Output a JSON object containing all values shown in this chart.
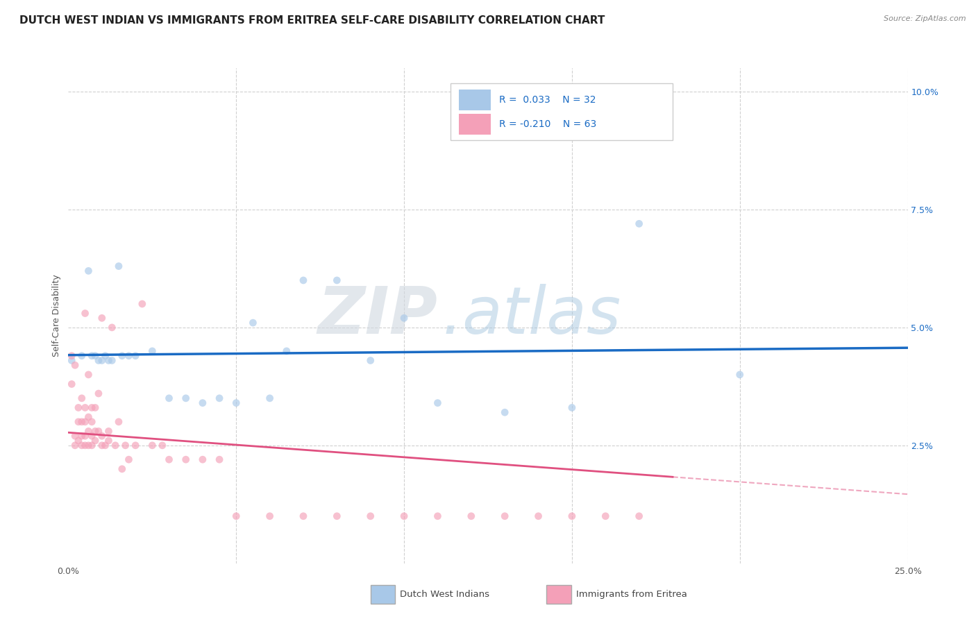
{
  "title": "DUTCH WEST INDIAN VS IMMIGRANTS FROM ERITREA SELF-CARE DISABILITY CORRELATION CHART",
  "source": "Source: ZipAtlas.com",
  "ylabel": "Self-Care Disability",
  "xlim": [
    0.0,
    0.25
  ],
  "ylim": [
    0.0,
    0.105
  ],
  "blue_color": "#a8c8e8",
  "blue_line_color": "#1a6bc4",
  "pink_color": "#f4a0b8",
  "pink_line_color": "#e05080",
  "R_blue": 0.033,
  "N_blue": 32,
  "R_pink": -0.21,
  "N_pink": 63,
  "blue_x": [
    0.001,
    0.004,
    0.006,
    0.007,
    0.008,
    0.009,
    0.01,
    0.011,
    0.012,
    0.013,
    0.015,
    0.016,
    0.018,
    0.02,
    0.025,
    0.03,
    0.035,
    0.04,
    0.045,
    0.05,
    0.055,
    0.06,
    0.065,
    0.07,
    0.08,
    0.09,
    0.1,
    0.11,
    0.13,
    0.15,
    0.17,
    0.2
  ],
  "blue_y": [
    0.043,
    0.044,
    0.062,
    0.044,
    0.044,
    0.043,
    0.043,
    0.044,
    0.043,
    0.043,
    0.063,
    0.044,
    0.044,
    0.044,
    0.045,
    0.035,
    0.035,
    0.034,
    0.035,
    0.034,
    0.051,
    0.035,
    0.045,
    0.06,
    0.06,
    0.043,
    0.052,
    0.034,
    0.032,
    0.033,
    0.072,
    0.04
  ],
  "pink_x": [
    0.001,
    0.001,
    0.002,
    0.002,
    0.002,
    0.003,
    0.003,
    0.003,
    0.004,
    0.004,
    0.004,
    0.004,
    0.005,
    0.005,
    0.005,
    0.005,
    0.005,
    0.006,
    0.006,
    0.006,
    0.006,
    0.007,
    0.007,
    0.007,
    0.007,
    0.008,
    0.008,
    0.008,
    0.009,
    0.009,
    0.01,
    0.01,
    0.01,
    0.011,
    0.012,
    0.012,
    0.013,
    0.014,
    0.015,
    0.016,
    0.017,
    0.018,
    0.02,
    0.022,
    0.025,
    0.028,
    0.03,
    0.035,
    0.04,
    0.045,
    0.05,
    0.06,
    0.07,
    0.08,
    0.09,
    0.1,
    0.11,
    0.12,
    0.13,
    0.14,
    0.15,
    0.16,
    0.17
  ],
  "pink_y": [
    0.038,
    0.044,
    0.025,
    0.027,
    0.042,
    0.026,
    0.03,
    0.033,
    0.025,
    0.027,
    0.03,
    0.035,
    0.025,
    0.027,
    0.03,
    0.033,
    0.053,
    0.025,
    0.028,
    0.031,
    0.04,
    0.025,
    0.027,
    0.03,
    0.033,
    0.026,
    0.028,
    0.033,
    0.036,
    0.028,
    0.025,
    0.027,
    0.052,
    0.025,
    0.026,
    0.028,
    0.05,
    0.025,
    0.03,
    0.02,
    0.025,
    0.022,
    0.025,
    0.055,
    0.025,
    0.025,
    0.022,
    0.022,
    0.022,
    0.022,
    0.01,
    0.01,
    0.01,
    0.01,
    0.01,
    0.01,
    0.01,
    0.01,
    0.01,
    0.01,
    0.01,
    0.01,
    0.01
  ],
  "background_color": "#ffffff",
  "grid_color": "#d0d0d0",
  "title_fontsize": 11,
  "label_fontsize": 9,
  "tick_fontsize": 9,
  "marker_size": 60,
  "marker_alpha": 0.65
}
